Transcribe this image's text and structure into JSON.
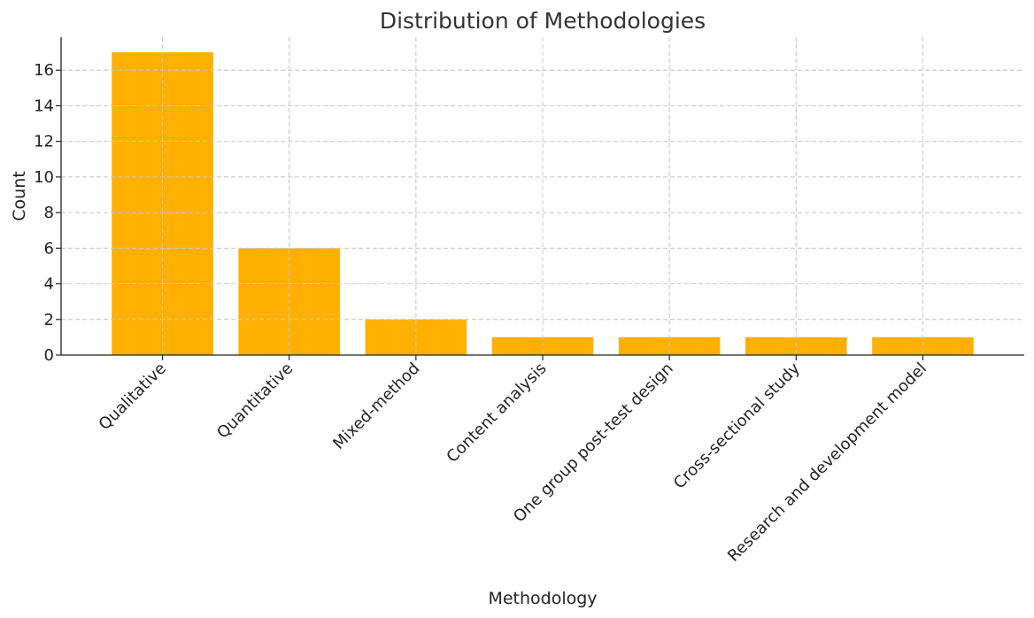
{
  "chart_data": {
    "type": "bar",
    "title": "Distribution of Methodologies",
    "xlabel": "Methodology",
    "ylabel": "Count",
    "categories": [
      "Qualitative",
      "Quantitative",
      "Mixed-method",
      "Content analysis",
      "One group post-test design",
      "Cross-sectional study",
      "Research and development model"
    ],
    "values": [
      17,
      6,
      2,
      1,
      1,
      1,
      1
    ],
    "ylim": [
      0,
      17.85
    ],
    "yticks": [
      0,
      2,
      4,
      6,
      8,
      10,
      12,
      14,
      16
    ],
    "grid": true,
    "bar_color": "#FFB000"
  }
}
